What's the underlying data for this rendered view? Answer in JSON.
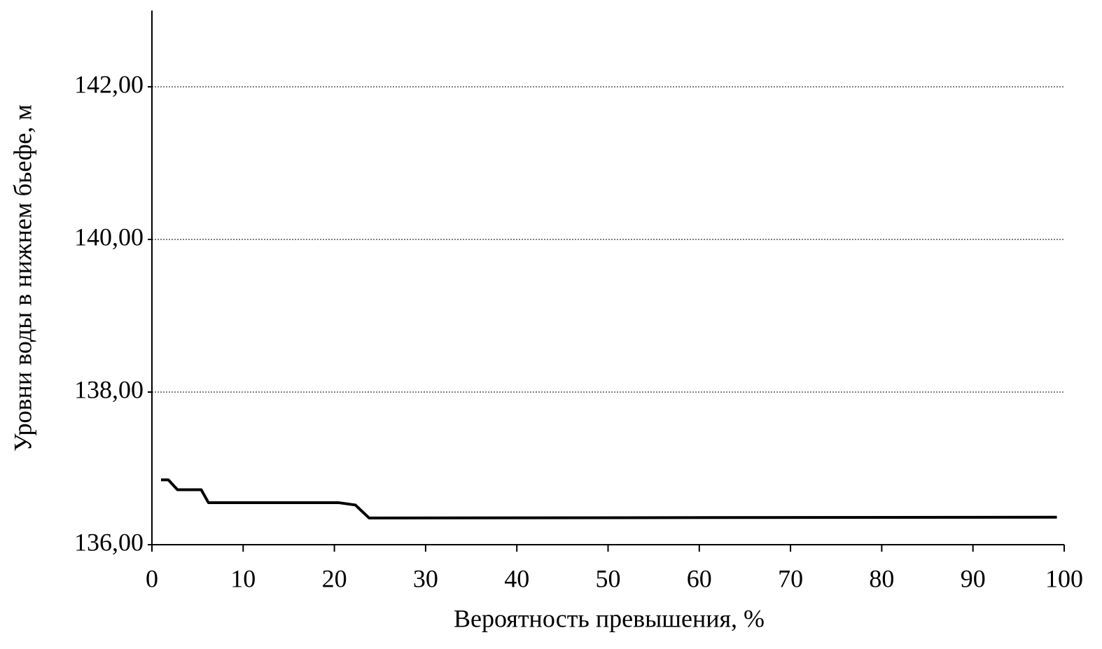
{
  "chart_data": {
    "type": "line",
    "x_label": "Вероятность превышения, %",
    "y_label": "Уровни воды в нижнем бьефе, м",
    "x": [
      1,
      1.8,
      2.8,
      5.4,
      6.2,
      20.5,
      22.3,
      23.8,
      99.2
    ],
    "series": [
      {
        "color": "#000000",
        "values": [
          136.85,
          136.85,
          136.72,
          136.72,
          136.55,
          136.55,
          136.52,
          136.35,
          136.36
        ]
      }
    ],
    "xlim": [
      0,
      100
    ],
    "xticks": [
      0,
      10,
      20,
      30,
      40,
      50,
      60,
      70,
      80,
      90,
      100
    ],
    "ylim": [
      136,
      143
    ],
    "yticks": [
      {
        "value": 136,
        "label": "136,00"
      },
      {
        "value": 138,
        "label": "138,00"
      },
      {
        "value": 140,
        "label": "140,00"
      },
      {
        "value": 142,
        "label": "142,00"
      }
    ],
    "grid": true
  }
}
